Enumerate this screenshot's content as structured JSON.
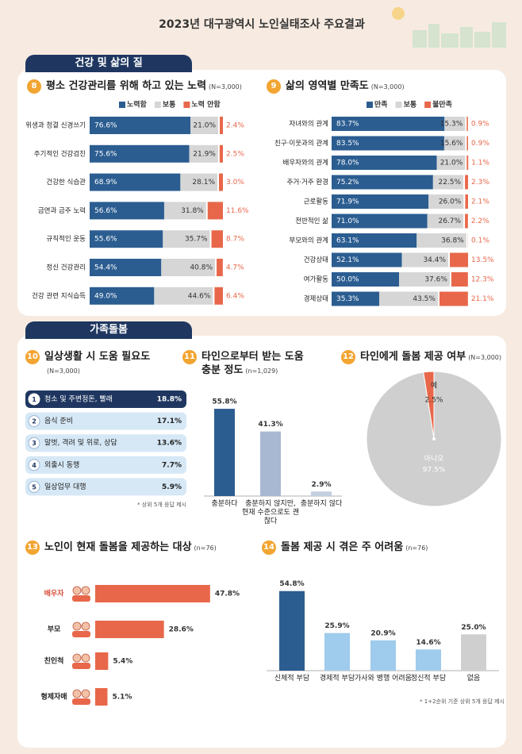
{
  "title": "2023년 대구광역시 노인실태조사 주요결과",
  "sections": [
    "건강 및 삶의 질",
    "가족돌봄"
  ],
  "chart_data": [
    {
      "type": "bar",
      "orientation": "horizontal",
      "stacked": true,
      "number": "8",
      "title": "평소 건강관리를 위해 하고 있는 노력",
      "subtitle": "(N=3,000)",
      "categories": [
        "위생과 청결 신경쓰기",
        "주기적인 건강검진",
        "건강한 식습관",
        "금연과 금주 노력",
        "규칙적인 운동",
        "정신 건강관리",
        "건강 관련 지식습득"
      ],
      "series": [
        {
          "name": "노력함",
          "color": "#2b5d91",
          "values": [
            76.6,
            75.6,
            68.9,
            56.6,
            55.6,
            54.4,
            49.0
          ],
          "value_labels": [
            "76.6%",
            "75.6%",
            "68.9%",
            "56.6%",
            "55.6%",
            "54.4%",
            "49.0%"
          ]
        },
        {
          "name": "보통",
          "color": "#d6d6d6",
          "values": [
            21.0,
            21.9,
            28.1,
            31.8,
            35.7,
            40.8,
            44.6
          ],
          "value_labels": [
            "21.0%",
            "21.9%",
            "28.1%",
            "31.8%",
            "35.7%",
            "40.8%",
            "44.6%"
          ]
        },
        {
          "name": "노력 안함",
          "color": "#e8674a",
          "values": [
            2.4,
            2.5,
            3.0,
            11.6,
            8.7,
            4.7,
            6.4
          ],
          "value_labels": [
            "2.4%",
            "2.5%",
            "3.0%",
            "11.6%",
            "8.7%",
            "4.7%",
            "6.4%"
          ]
        }
      ]
    },
    {
      "type": "bar",
      "orientation": "horizontal",
      "stacked": true,
      "number": "9",
      "title": "삶의 영역별 만족도",
      "subtitle": "(N=3,000)",
      "categories": [
        "자녀와의 관계",
        "친구·이웃과의 관계",
        "배우자와의 관계",
        "주거·거주 환경",
        "근로활동",
        "전반적인 삶",
        "부모와의 관계",
        "건강상태",
        "여가활동",
        "경제상태"
      ],
      "series": [
        {
          "name": "만족",
          "color": "#2b5d91",
          "values": [
            83.7,
            83.5,
            78.0,
            75.2,
            71.9,
            71.0,
            63.1,
            52.1,
            50.0,
            35.3
          ],
          "value_labels": [
            "83.7%",
            "83.5%",
            "78.0%",
            "75.2%",
            "71.9%",
            "71.0%",
            "63.1%",
            "52.1%",
            "50.0%",
            "35.3%"
          ]
        },
        {
          "name": "보통",
          "color": "#d6d6d6",
          "values": [
            15.3,
            15.6,
            21.0,
            22.5,
            26.0,
            26.7,
            36.8,
            34.4,
            37.6,
            43.5
          ],
          "value_labels": [
            "15.3%",
            "15.6%",
            "21.0%",
            "22.5%",
            "26.0%",
            "26.7%",
            "36.8%",
            "34.4%",
            "37.6%",
            "43.5%"
          ]
        },
        {
          "name": "불만족",
          "color": "#e8674a",
          "values": [
            0.9,
            0.9,
            1.1,
            2.3,
            2.1,
            2.2,
            0.1,
            13.5,
            12.3,
            21.1
          ],
          "value_labels": [
            "0.9%",
            "0.9%",
            "1.1%",
            "2.3%",
            "2.1%",
            "2.2%",
            "0.1%",
            "13.5%",
            "12.3%",
            "21.1%"
          ]
        }
      ]
    },
    {
      "type": "list",
      "number": "10",
      "title": "일상생활 시 도움 필요도",
      "subtitle": "(N=3,000)",
      "ranks": [
        1,
        2,
        3,
        4,
        5
      ],
      "categories": [
        "청소 및 주변정돈, 빨래",
        "음식 준비",
        "말벗, 격려 및 위로, 상담",
        "외출시 동행",
        "일상업무 대행"
      ],
      "values": [
        18.8,
        17.1,
        13.6,
        7.7,
        5.9
      ],
      "value_labels": [
        "18.8%",
        "17.1%",
        "13.6%",
        "7.7%",
        "5.9%"
      ],
      "note": "* 상위 5개 응답 제시"
    },
    {
      "type": "bar",
      "orientation": "vertical",
      "number": "11",
      "title": "타인으로부터 받는 도움 충분 정도",
      "subtitle": "(n=1,029)",
      "categories": [
        "충분하다",
        "충분하지 않지만, 현재 수준으로도 괜찮다",
        "충분하지 않다"
      ],
      "values": [
        55.8,
        41.3,
        2.9
      ],
      "value_labels": [
        "55.8%",
        "41.3%",
        "2.9%"
      ],
      "colors": [
        "#2b5d91",
        "#a8b8d2",
        "#c3cfe0"
      ]
    },
    {
      "type": "pie",
      "number": "12",
      "title": "타인에게 돌봄 제공 여부",
      "subtitle": "(N=3,000)",
      "categories": [
        "예",
        "아니오"
      ],
      "values": [
        2.5,
        97.5
      ],
      "value_labels": [
        "2.5%",
        "97.5%"
      ],
      "colors": [
        "#e8674a",
        "#cfcfcf"
      ]
    },
    {
      "type": "bar",
      "orientation": "horizontal",
      "number": "13",
      "title": "노인이 현재 돌봄을 제공하는 대상",
      "subtitle": "(n=76)",
      "categories": [
        "배우자",
        "부모",
        "친인척",
        "형제자매"
      ],
      "values": [
        47.8,
        28.6,
        5.4,
        5.1
      ],
      "value_labels": [
        "47.8%",
        "28.6%",
        "5.4%",
        "5.1%"
      ],
      "color": "#e8674a"
    },
    {
      "type": "bar",
      "orientation": "vertical",
      "number": "14",
      "title": "돌봄 제공 시 겪은 주 어려움",
      "subtitle": "(n=76)",
      "categories": [
        "신체적 부담",
        "경제적 부담",
        "가사와 병행 어려움",
        "정신적 부담",
        "없음"
      ],
      "values": [
        54.8,
        25.9,
        20.9,
        14.6,
        25.0
      ],
      "value_labels": [
        "54.8%",
        "25.9%",
        "20.9%",
        "14.6%",
        "25.0%"
      ],
      "colors": [
        "#2b5d91",
        "#9fcbec",
        "#9fcbec",
        "#9fcbec",
        "#cfcfcf"
      ],
      "note": "* 1+2순위 기준 상위 5개 응답 제시"
    }
  ]
}
